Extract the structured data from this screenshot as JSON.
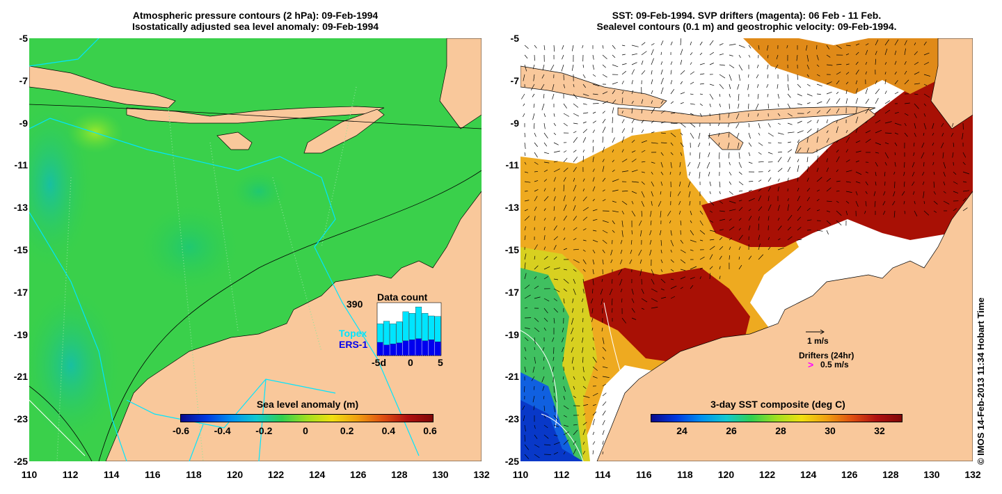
{
  "left_panel": {
    "title_line1": "Atmospheric pressure contours (2 hPa): 09-Feb-1994",
    "title_line2": "Isostatically adjusted sea level anomaly: 09-Feb-1994",
    "colorbar": {
      "title": "Sea level anomaly (m)",
      "ticks": [
        "-0.6",
        "-0.4",
        "-0.2",
        "0",
        "0.2",
        "0.4",
        "0.6"
      ]
    },
    "data_count": {
      "title": "Data count",
      "max_label": "390",
      "series_topex": "Topex",
      "series_ers": "ERS-1",
      "x_left": "-5d",
      "x_mid": "0",
      "x_right": "5",
      "topex_fraction": [
        0.35,
        0.45,
        0.38,
        0.4,
        0.55,
        0.5,
        0.6,
        0.52,
        0.45,
        0.48
      ],
      "ers_fraction": [
        0.25,
        0.2,
        0.22,
        0.24,
        0.28,
        0.3,
        0.32,
        0.28,
        0.3,
        0.26
      ]
    }
  },
  "right_panel": {
    "title_line1": "SST: 09-Feb-1994. SVP drifters (magenta): 06 Feb - 11 Feb.",
    "title_line2": "Sealevel contours (0.1 m) and geostrophic velocity: 09-Feb-1994.",
    "colorbar": {
      "title": "3-day SST composite (deg C)",
      "ticks": [
        "24",
        "26",
        "28",
        "30",
        "32"
      ]
    },
    "velocity_scale": "1 m/s",
    "drifters_label": "Drifters (24hr)",
    "drifter_scale": "0.5 m/s",
    "drifter_symbol": ">"
  },
  "axes": {
    "y_ticks": [
      "-5",
      "-7",
      "-9",
      "-11",
      "-13",
      "-15",
      "-17",
      "-19",
      "-21",
      "-23",
      "-25"
    ],
    "x_ticks": [
      "110",
      "112",
      "114",
      "116",
      "118",
      "120",
      "122",
      "124",
      "126",
      "128",
      "130",
      "132"
    ]
  },
  "credit": "© IMOS 14-Feb-2013 11:34 Hobart Time",
  "colors": {
    "land": "#f9c89b",
    "sea_green": "#36d04b",
    "topex": "#00e5ff",
    "ers": "#0000ee",
    "hot": "#a80f05",
    "orange": "#f0a020",
    "drifter": "#ff00ff"
  }
}
